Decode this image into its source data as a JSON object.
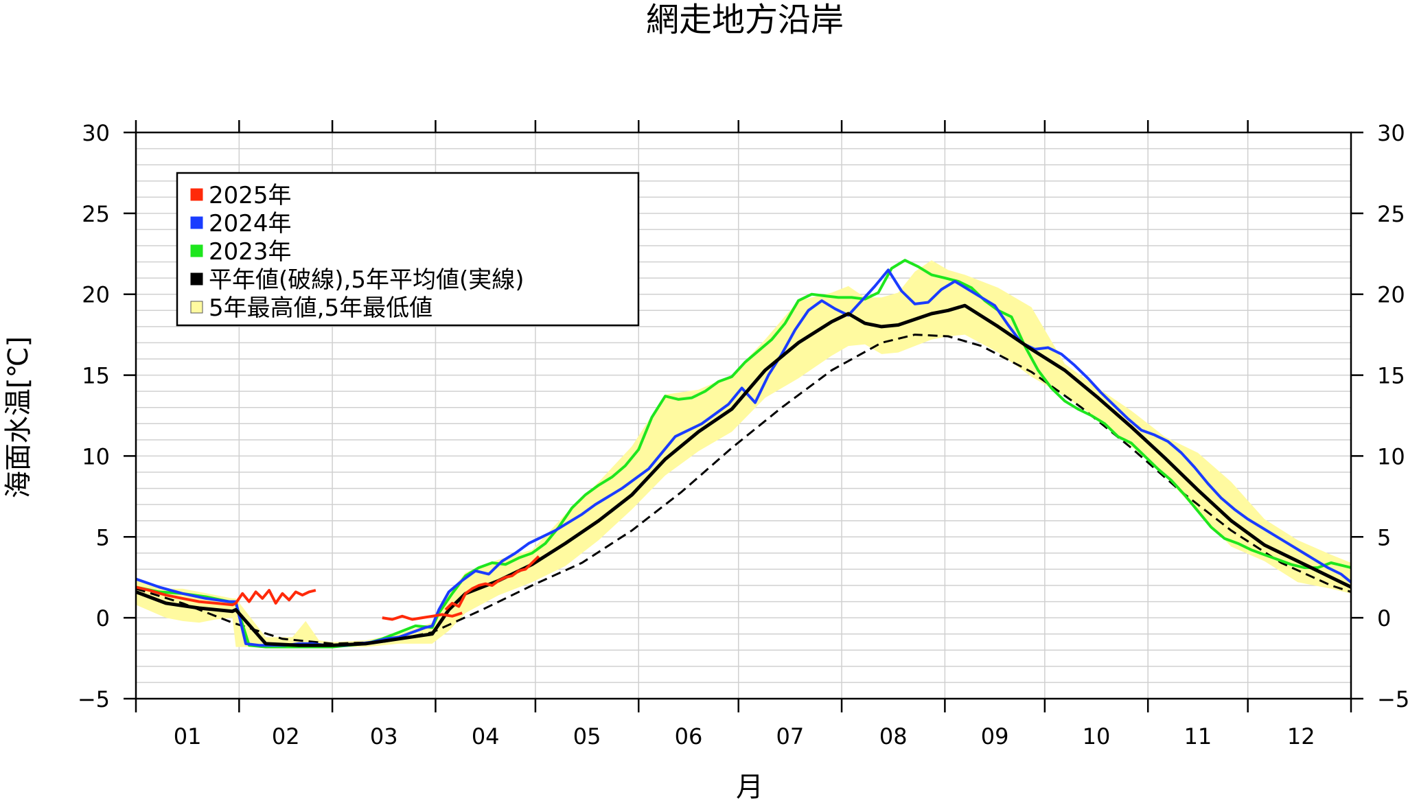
{
  "title": "網走地方沿岸",
  "xlabel": "月",
  "ylabel": "海面水温[℃]",
  "ytick_labels": [
    "30",
    "25",
    "20",
    "15",
    "10",
    "5",
    "0",
    "−5"
  ],
  "month_labels": [
    "01",
    "02",
    "03",
    "04",
    "05",
    "06",
    "07",
    "08",
    "09",
    "10",
    "11",
    "12"
  ],
  "legend": [
    {
      "label": "2025年",
      "color": "#ff2a0a",
      "key": "y2025"
    },
    {
      "label": "2024年",
      "color": "#1a3cff",
      "key": "y2024"
    },
    {
      "label": "2023年",
      "color": "#1ee61e",
      "key": "y2023"
    },
    {
      "label": "平年値(破線),5年平均値(実線)",
      "color": "#000000",
      "key": "normal"
    },
    {
      "label": "5年最高値,5年最低値",
      "color": "#fffaa0",
      "key": "band"
    }
  ],
  "colors": {
    "y2025": "#ff2a0a",
    "y2024": "#1a3cff",
    "y2023": "#1ee61e",
    "avg": "#000000",
    "normal": "#000000",
    "band": "#fffaa0",
    "grid": "#d0d0d0"
  },
  "chart_data": {
    "type": "line",
    "title": "網走地方沿岸",
    "xlabel": "月",
    "ylabel": "海面水温[℃]",
    "x_unit": "day of year (1-366)",
    "xlim": [
      1,
      366
    ],
    "ylim": [
      -5,
      30
    ],
    "yticks": [
      -5,
      0,
      5,
      10,
      15,
      20,
      25,
      30
    ],
    "ygrid_step": 1,
    "grid": true,
    "legend_position": "top-left",
    "month_start_days": [
      1,
      32,
      60,
      91,
      121,
      152,
      182,
      213,
      244,
      274,
      305,
      335
    ],
    "series": [
      {
        "name": "2025年",
        "color": "#ff2a0a",
        "segments": [
          {
            "x": [
              1,
              5,
              10,
              15,
              20,
              25,
              30,
              31,
              33,
              35,
              37,
              39,
              41,
              43,
              45,
              47,
              49,
              51,
              53,
              55
            ],
            "y": [
              1.9,
              1.7,
              1.4,
              1.2,
              1.0,
              0.9,
              0.8,
              0.9,
              1.5,
              1.0,
              1.6,
              1.2,
              1.7,
              0.9,
              1.5,
              1.1,
              1.6,
              1.4,
              1.6,
              1.7
            ]
          },
          {
            "x": [
              75,
              78,
              81,
              84,
              87,
              90,
              93,
              96,
              99
            ],
            "y": [
              0.0,
              -0.1,
              0.1,
              -0.1,
              0.0,
              0.1,
              0.2,
              0.1,
              0.3
            ]
          },
          {
            "x": [
              94,
              96,
              98,
              100,
              102,
              104,
              106,
              108,
              110,
              112,
              114,
              116,
              118,
              120,
              122
            ],
            "y": [
              0.5,
              0.9,
              0.7,
              1.5,
              1.8,
              2.0,
              2.1,
              2.0,
              2.3,
              2.5,
              2.6,
              2.9,
              3.0,
              3.4,
              3.8
            ]
          }
        ]
      },
      {
        "name": "2024年",
        "color": "#1a3cff",
        "x": [
          1,
          8,
          15,
          22,
          29,
          31,
          34,
          38,
          42,
          46,
          50,
          54,
          58,
          60,
          64,
          68,
          72,
          76,
          80,
          84,
          88,
          90,
          92,
          95,
          99,
          103,
          107,
          111,
          115,
          119,
          123,
          127,
          131,
          135,
          139,
          143,
          147,
          151,
          155,
          159,
          163,
          167,
          171,
          175,
          179,
          183,
          187,
          191,
          195,
          199,
          203,
          207,
          211,
          215,
          219,
          223,
          227,
          231,
          235,
          239,
          243,
          247,
          251,
          255,
          259,
          263,
          267,
          271,
          275,
          279,
          283,
          287,
          291,
          295,
          299,
          303,
          307,
          311,
          315,
          319,
          323,
          327,
          331,
          335,
          339,
          343,
          347,
          351,
          355,
          359,
          363,
          366
        ],
        "y": [
          2.4,
          1.9,
          1.5,
          1.2,
          1.0,
          1.0,
          -1.6,
          -1.7,
          -1.7,
          -1.7,
          -1.6,
          -1.6,
          -1.7,
          -1.7,
          -1.7,
          -1.6,
          -1.5,
          -1.3,
          -1.2,
          -0.9,
          -0.6,
          -0.5,
          0.5,
          1.6,
          2.3,
          2.9,
          2.7,
          3.5,
          4.0,
          4.6,
          5.0,
          5.4,
          5.9,
          6.4,
          7.0,
          7.5,
          8.0,
          8.6,
          9.2,
          10.2,
          11.2,
          11.6,
          12.0,
          12.6,
          13.2,
          14.2,
          13.3,
          15.0,
          16.3,
          17.8,
          19.0,
          19.6,
          19.1,
          18.7,
          19.6,
          20.5,
          21.5,
          20.2,
          19.4,
          19.5,
          20.3,
          20.8,
          20.3,
          19.8,
          19.3,
          18.1,
          17.0,
          16.6,
          16.7,
          16.3,
          15.6,
          14.8,
          13.9,
          13.1,
          12.3,
          11.6,
          11.3,
          10.9,
          10.2,
          9.3,
          8.3,
          7.4,
          6.7,
          6.1,
          5.6,
          5.1,
          4.6,
          4.1,
          3.6,
          3.1,
          2.7,
          2.2
        ]
      },
      {
        "name": "2023年",
        "color": "#1ee61e",
        "x": [
          1,
          8,
          15,
          22,
          29,
          31,
          35,
          40,
          45,
          50,
          55,
          60,
          65,
          70,
          75,
          80,
          85,
          90,
          92,
          96,
          100,
          104,
          108,
          112,
          116,
          120,
          124,
          128,
          132,
          136,
          140,
          144,
          148,
          152,
          156,
          160,
          164,
          168,
          172,
          176,
          180,
          184,
          188,
          192,
          196,
          200,
          204,
          208,
          212,
          216,
          220,
          224,
          228,
          232,
          236,
          240,
          244,
          248,
          252,
          256,
          260,
          264,
          268,
          272,
          276,
          280,
          284,
          288,
          292,
          296,
          300,
          304,
          308,
          312,
          316,
          320,
          324,
          328,
          332,
          336,
          340,
          344,
          348,
          352,
          356,
          360,
          364,
          366
        ],
        "y": [
          1.9,
          1.6,
          1.5,
          1.3,
          1.0,
          0.9,
          -1.7,
          -1.8,
          -1.8,
          -1.8,
          -1.8,
          -1.8,
          -1.7,
          -1.6,
          -1.3,
          -0.9,
          -0.5,
          -0.6,
          0.3,
          1.5,
          2.6,
          3.1,
          3.4,
          3.3,
          3.7,
          4.0,
          4.6,
          5.6,
          6.8,
          7.6,
          8.2,
          8.7,
          9.4,
          10.4,
          12.4,
          13.7,
          13.5,
          13.6,
          14.0,
          14.6,
          14.9,
          15.8,
          16.5,
          17.2,
          18.2,
          19.6,
          20.0,
          19.9,
          19.8,
          19.8,
          19.7,
          20.1,
          21.6,
          22.1,
          21.7,
          21.2,
          21.0,
          20.8,
          20.4,
          19.6,
          19.0,
          18.6,
          16.8,
          15.3,
          14.2,
          13.4,
          12.9,
          12.5,
          12.0,
          11.2,
          10.8,
          10.0,
          9.2,
          8.5,
          7.6,
          6.6,
          5.6,
          4.9,
          4.6,
          4.2,
          3.9,
          3.6,
          3.3,
          3.1,
          3.1,
          3.4,
          3.2,
          3.1
        ]
      },
      {
        "name": "5年平均値",
        "color": "#000000",
        "style": "solid",
        "x": [
          1,
          10,
          20,
          30,
          31,
          40,
          50,
          60,
          70,
          80,
          90,
          95,
          100,
          110,
          120,
          130,
          140,
          150,
          160,
          170,
          180,
          190,
          200,
          210,
          215,
          220,
          225,
          230,
          240,
          245,
          250,
          260,
          270,
          280,
          290,
          300,
          310,
          320,
          330,
          340,
          350,
          360,
          366
        ],
        "y": [
          1.6,
          0.9,
          0.6,
          0.4,
          0.5,
          -1.6,
          -1.7,
          -1.7,
          -1.6,
          -1.3,
          -1.0,
          0.5,
          1.5,
          2.3,
          3.3,
          4.6,
          6.0,
          7.6,
          9.8,
          11.5,
          12.9,
          15.3,
          17.0,
          18.3,
          18.8,
          18.2,
          18.0,
          18.1,
          18.8,
          19.0,
          19.3,
          18.0,
          16.6,
          15.3,
          13.6,
          11.8,
          9.9,
          7.9,
          6.0,
          4.5,
          3.5,
          2.5,
          1.9
        ]
      },
      {
        "name": "平年値",
        "color": "#000000",
        "style": "dashed",
        "x": [
          1,
          15,
          30,
          45,
          60,
          75,
          90,
          105,
          120,
          135,
          150,
          165,
          180,
          195,
          210,
          225,
          235,
          245,
          255,
          270,
          285,
          300,
          315,
          330,
          345,
          360,
          366
        ],
        "y": [
          1.8,
          0.9,
          -0.3,
          -1.3,
          -1.6,
          -1.5,
          -0.9,
          0.5,
          2.0,
          3.4,
          5.4,
          7.8,
          10.5,
          13.0,
          15.3,
          17.0,
          17.5,
          17.4,
          16.8,
          15.2,
          13.0,
          10.5,
          7.8,
          5.4,
          3.4,
          2.0,
          1.6
        ]
      }
    ],
    "band": {
      "name": "5年最高値,5年最低値",
      "color": "#fffaa0",
      "x": [
        1,
        10,
        15,
        20,
        25,
        30,
        31,
        40,
        48,
        52,
        56,
        60,
        70,
        80,
        90,
        95,
        100,
        110,
        120,
        130,
        140,
        150,
        160,
        170,
        180,
        190,
        200,
        210,
        215,
        220,
        225,
        230,
        235,
        240,
        245,
        250,
        260,
        270,
        280,
        290,
        300,
        310,
        320,
        330,
        340,
        350,
        360,
        366
      ],
      "upper": [
        2.5,
        1.8,
        1.8,
        1.6,
        1.4,
        1.2,
        1.2,
        -1.2,
        -1.2,
        -0.2,
        -1.4,
        -1.5,
        -1.4,
        -1.0,
        -0.3,
        1.5,
        2.8,
        3.6,
        4.2,
        6.4,
        8.4,
        10.6,
        13.8,
        14.1,
        15.0,
        17.2,
        19.6,
        20.1,
        20.5,
        19.8,
        19.8,
        20.1,
        21.4,
        22.1,
        21.5,
        21.2,
        20.4,
        19.2,
        15.7,
        14.2,
        12.8,
        11.2,
        10.2,
        8.4,
        6.1,
        4.8,
        3.9,
        3.4
      ],
      "lower": [
        0.8,
        0.0,
        -0.2,
        -0.3,
        -0.1,
        0.0,
        -1.8,
        -1.8,
        -1.8,
        -1.8,
        -1.8,
        -1.8,
        -1.8,
        -1.6,
        -1.6,
        -0.8,
        0.3,
        1.4,
        2.2,
        3.2,
        4.8,
        6.7,
        8.8,
        10.3,
        11.5,
        13.6,
        14.8,
        16.2,
        16.8,
        16.9,
        16.3,
        16.4,
        16.8,
        17.2,
        17.4,
        17.5,
        16.4,
        14.9,
        13.7,
        12.3,
        10.6,
        8.8,
        6.5,
        4.4,
        3.5,
        2.2,
        1.8,
        1.5
      ]
    }
  }
}
